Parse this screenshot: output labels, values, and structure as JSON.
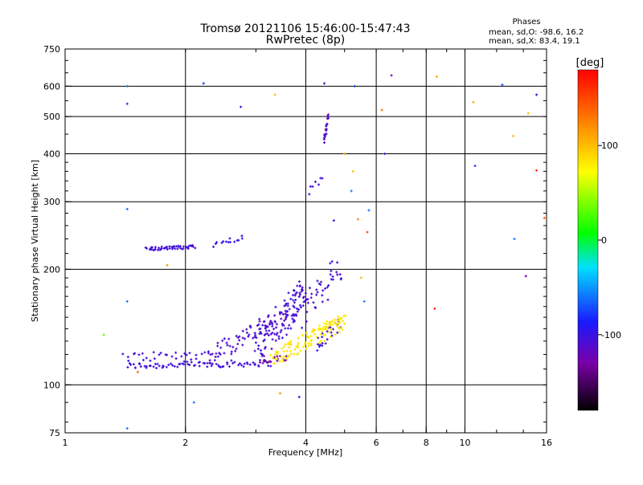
{
  "header": {
    "title": "Tromsø 20121106 15:46:00-15:47:43",
    "subtitle": "RwPretec (8p)"
  },
  "phase_stats": {
    "heading": "Phases",
    "line_o": "mean, sd,O: -98.6, 16.2",
    "line_x": "mean, sd,X:  83.4, 19.1"
  },
  "colorbar": {
    "unit": "[deg]",
    "range": [
      -180,
      180
    ],
    "ticks": [
      {
        "value": 100,
        "label": "100"
      },
      {
        "value": 0,
        "label": "0"
      },
      {
        "value": -100,
        "label": "-100"
      }
    ],
    "stops": [
      "#000000",
      "#7a00a8",
      "#1a1aff",
      "#00e0ff",
      "#00ff00",
      "#ffff00",
      "#ff8800",
      "#ff0000"
    ]
  },
  "chart_data": {
    "type": "scatter",
    "title": "Tromsø 20121106 15:46:00-15:47:43",
    "subtitle": "RwPretec (8p)",
    "xlabel": "Frequency [MHz]",
    "ylabel": "Stationary phase Virtual Height [km]",
    "xscale": "log",
    "yscale": "log",
    "xlim": [
      1,
      16
    ],
    "ylim": [
      75,
      750
    ],
    "xticks": [
      {
        "value": 1,
        "label": "1"
      },
      {
        "value": 2,
        "label": "2"
      },
      {
        "value": 4,
        "label": "4"
      },
      {
        "value": 6,
        "label": "6"
      },
      {
        "value": 8,
        "label": "8"
      },
      {
        "value": 10,
        "label": "10"
      },
      {
        "value": 16,
        "label": "16"
      }
    ],
    "yticks": [
      {
        "value": 75,
        "label": "75"
      },
      {
        "value": 100,
        "label": "100"
      },
      {
        "value": 200,
        "label": "200"
      },
      {
        "value": 300,
        "label": "300"
      },
      {
        "value": 400,
        "label": "400"
      },
      {
        "value": 500,
        "label": "500"
      },
      {
        "value": 600,
        "label": "600"
      },
      {
        "value": 750,
        "label": "750"
      }
    ],
    "grid_x": [
      2,
      4,
      6,
      8,
      10
    ],
    "grid_y": [
      100,
      200,
      300,
      400,
      500,
      600
    ],
    "color_variable": "phase [deg]",
    "clusters": [
      {
        "kind": "line",
        "f": [
          1.43,
          3.25
        ],
        "h": [
          112,
          114
        ],
        "n": 80,
        "jf": 0.01,
        "jh": 0.02,
        "phase": [
          -95,
          -110
        ]
      },
      {
        "kind": "line",
        "f": [
          1.4,
          2.3
        ],
        "h": [
          118,
          120
        ],
        "n": 30,
        "jf": 0.01,
        "jh": 0.03,
        "phase": [
          -100,
          -110
        ]
      },
      {
        "kind": "line",
        "f": [
          2.3,
          3.3
        ],
        "h": [
          120,
          145
        ],
        "n": 60,
        "jf": 0.015,
        "jh": 0.06,
        "phase": [
          -105,
          -115
        ]
      },
      {
        "kind": "line",
        "f": [
          3.0,
          4.0
        ],
        "h": [
          125,
          178
        ],
        "n": 110,
        "jf": 0.02,
        "jh": 0.1,
        "phase": [
          -100,
          -115
        ]
      },
      {
        "kind": "line",
        "f": [
          3.5,
          4.9
        ],
        "h": [
          140,
          200
        ],
        "n": 60,
        "jf": 0.02,
        "jh": 0.1,
        "phase": [
          -95,
          -115
        ]
      },
      {
        "kind": "line",
        "f": [
          4.2,
          4.9
        ],
        "h": [
          125,
          145
        ],
        "n": 25,
        "jf": 0.02,
        "jh": 0.05,
        "phase": [
          -100,
          -110
        ]
      },
      {
        "kind": "line",
        "f": [
          3.1,
          3.6
        ],
        "h": [
          114,
          118
        ],
        "n": 20,
        "jf": 0.01,
        "jh": 0.02,
        "phase": [
          -125,
          -140
        ]
      },
      {
        "kind": "line",
        "f": [
          3.3,
          5.0
        ],
        "h": [
          118,
          145
        ],
        "n": 110,
        "jf": 0.015,
        "jh": 0.05,
        "phase": [
          85,
          80
        ]
      },
      {
        "kind": "line",
        "f": [
          4.3,
          5.0
        ],
        "h": [
          140,
          152
        ],
        "n": 20,
        "jf": 0.01,
        "jh": 0.02,
        "phase": [
          75,
          85
        ]
      },
      {
        "kind": "line",
        "f": [
          1.6,
          2.1
        ],
        "h": [
          226,
          229
        ],
        "n": 50,
        "jf": 0.008,
        "jh": 0.01,
        "phase": [
          -100,
          -110
        ]
      },
      {
        "kind": "line",
        "f": [
          2.35,
          2.78
        ],
        "h": [
          230,
          245
        ],
        "n": 14,
        "jf": 0.01,
        "jh": 0.02,
        "phase": [
          -95,
          -100
        ]
      },
      {
        "kind": "line",
        "f": [
          4.45,
          4.55
        ],
        "h": [
          430,
          500
        ],
        "n": 22,
        "jf": 0.004,
        "jh": 0.02,
        "phase": [
          -110,
          -115
        ]
      },
      {
        "kind": "line",
        "f": [
          4.05,
          4.4
        ],
        "h": [
          320,
          345
        ],
        "n": 7,
        "jf": 0.01,
        "jh": 0.02,
        "phase": [
          -105,
          -110
        ]
      }
    ],
    "sparse_points": [
      {
        "f": 1.43,
        "h": 600,
        "phase": -60
      },
      {
        "f": 1.43,
        "h": 540,
        "phase": -80
      },
      {
        "f": 1.43,
        "h": 287,
        "phase": -60
      },
      {
        "f": 1.43,
        "h": 165,
        "phase": -60
      },
      {
        "f": 1.43,
        "h": 77,
        "phase": -60
      },
      {
        "f": 1.25,
        "h": 135,
        "phase": 30
      },
      {
        "f": 1.52,
        "h": 108,
        "phase": 140
      },
      {
        "f": 1.8,
        "h": 205,
        "phase": 120
      },
      {
        "f": 2.1,
        "h": 90,
        "phase": -60
      },
      {
        "f": 2.22,
        "h": 610,
        "phase": -80
      },
      {
        "f": 2.75,
        "h": 530,
        "phase": -100
      },
      {
        "f": 3.35,
        "h": 570,
        "phase": 100
      },
      {
        "f": 3.45,
        "h": 95,
        "phase": 120
      },
      {
        "f": 3.85,
        "h": 93,
        "phase": -100
      },
      {
        "f": 4.45,
        "h": 610,
        "phase": -110
      },
      {
        "f": 4.7,
        "h": 268,
        "phase": -100
      },
      {
        "f": 5.2,
        "h": 320,
        "phase": -60
      },
      {
        "f": 5.0,
        "h": 400,
        "phase": 120
      },
      {
        "f": 5.25,
        "h": 360,
        "phase": 100
      },
      {
        "f": 5.3,
        "h": 600,
        "phase": -80
      },
      {
        "f": 5.4,
        "h": 270,
        "phase": 130
      },
      {
        "f": 5.5,
        "h": 190,
        "phase": 100
      },
      {
        "f": 5.6,
        "h": 165,
        "phase": -60
      },
      {
        "f": 5.7,
        "h": 250,
        "phase": 150
      },
      {
        "f": 5.75,
        "h": 285,
        "phase": -60
      },
      {
        "f": 6.2,
        "h": 520,
        "phase": 130
      },
      {
        "f": 6.3,
        "h": 400,
        "phase": -110
      },
      {
        "f": 6.55,
        "h": 640,
        "phase": -120
      },
      {
        "f": 8.4,
        "h": 158,
        "phase": 170
      },
      {
        "f": 8.5,
        "h": 635,
        "phase": 110
      },
      {
        "f": 10.5,
        "h": 545,
        "phase": 110
      },
      {
        "f": 10.6,
        "h": 372,
        "phase": -80
      },
      {
        "f": 12.4,
        "h": 605,
        "phase": -70
      },
      {
        "f": 13.2,
        "h": 445,
        "phase": 100
      },
      {
        "f": 13.3,
        "h": 240,
        "phase": -60
      },
      {
        "f": 14.2,
        "h": 192,
        "phase": -120
      },
      {
        "f": 14.4,
        "h": 510,
        "phase": 100
      },
      {
        "f": 15.1,
        "h": 570,
        "phase": -110
      },
      {
        "f": 15.1,
        "h": 362,
        "phase": 160
      },
      {
        "f": 15.8,
        "h": 272,
        "phase": 140
      }
    ]
  }
}
